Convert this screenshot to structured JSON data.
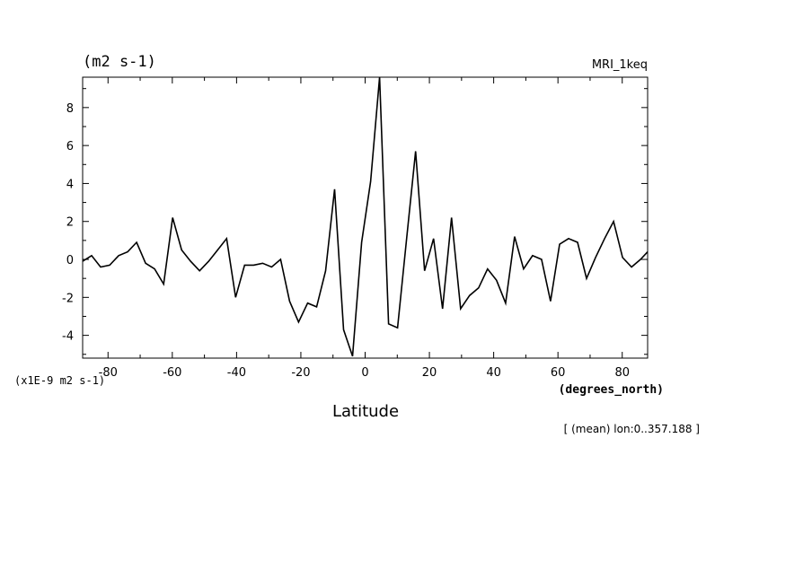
{
  "chart_data": {
    "type": "line",
    "title": "(m2 s-1)",
    "model_label": "MRI_1keq",
    "xlabel": "Latitude",
    "x_units": "(degrees_north)",
    "y_scale_label": "(x1E-9 m2 s-1)",
    "annotation": "[ (mean) lon:0..357.188 ]",
    "xlim": [
      -87.9,
      87.9
    ],
    "ylim": [
      -5.2,
      9.6
    ],
    "xticks": [
      -80,
      -60,
      -40,
      -20,
      0,
      20,
      40,
      60,
      80
    ],
    "yticks": [
      -4,
      -2,
      0,
      2,
      4,
      6,
      8
    ],
    "grid": false,
    "line_color": "#000000",
    "series": [
      {
        "x": [
          -87.9,
          -85.1,
          -82.3,
          -79.5,
          -76.7,
          -73.9,
          -71.1,
          -68.3,
          -65.5,
          -62.7,
          -59.9,
          -57.1,
          -54.3,
          -51.5,
          -48.7,
          -45.9,
          -43.1,
          -40.3,
          -37.5,
          -34.7,
          -31.9,
          -29.1,
          -26.3,
          -23.5,
          -20.7,
          -17.9,
          -15.1,
          -12.3,
          -9.5,
          -6.7,
          -3.9,
          -1.1,
          1.7,
          4.5,
          7.3,
          10.1,
          12.9,
          15.7,
          18.5,
          21.3,
          24.1,
          26.9,
          29.7,
          32.5,
          35.3,
          38.1,
          40.9,
          43.7,
          46.5,
          49.3,
          52.1,
          54.9,
          57.7,
          60.5,
          63.3,
          66.1,
          68.9,
          71.7,
          74.5,
          77.3,
          80.1,
          82.9,
          85.7,
          87.9
        ],
        "values": [
          -0.1,
          0.2,
          -0.4,
          -0.3,
          0.2,
          0.4,
          0.9,
          -0.2,
          -0.5,
          -1.3,
          2.2,
          0.5,
          -0.1,
          -0.6,
          -0.1,
          0.5,
          1.1,
          -2.0,
          -0.3,
          -0.3,
          -0.2,
          -0.4,
          0.0,
          -2.2,
          -3.3,
          -2.3,
          -2.5,
          -0.6,
          3.7,
          -3.7,
          -5.1,
          0.9,
          4.1,
          9.6,
          -3.4,
          -3.6,
          1.1,
          5.7,
          -0.6,
          1.1,
          -2.6,
          2.2,
          -2.6,
          -1.9,
          -1.5,
          -0.5,
          -1.1,
          -2.3,
          1.2,
          -0.5,
          0.2,
          0.0,
          -2.2,
          0.8,
          1.1,
          0.9,
          -1.0,
          0.1,
          1.1,
          2.0,
          0.1,
          -0.4,
          0.0,
          0.4
        ]
      }
    ]
  }
}
